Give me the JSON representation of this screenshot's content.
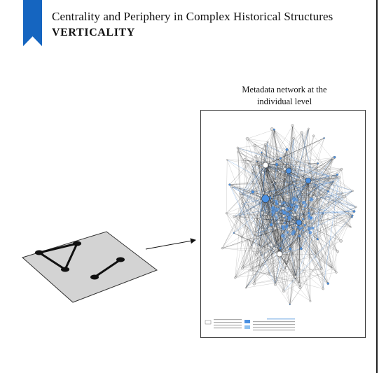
{
  "header": {
    "title": "Centrality and Periphery in Complex Historical Structures",
    "subtitle": "VERTICALITY"
  },
  "network_caption": {
    "line1": "Metadata network at the",
    "line2": "individual level"
  },
  "colors": {
    "ribbon": "#1565c0",
    "highlight": "#4a90e2",
    "edge": "#1a1a1a",
    "plane": "#d3d3d3"
  }
}
